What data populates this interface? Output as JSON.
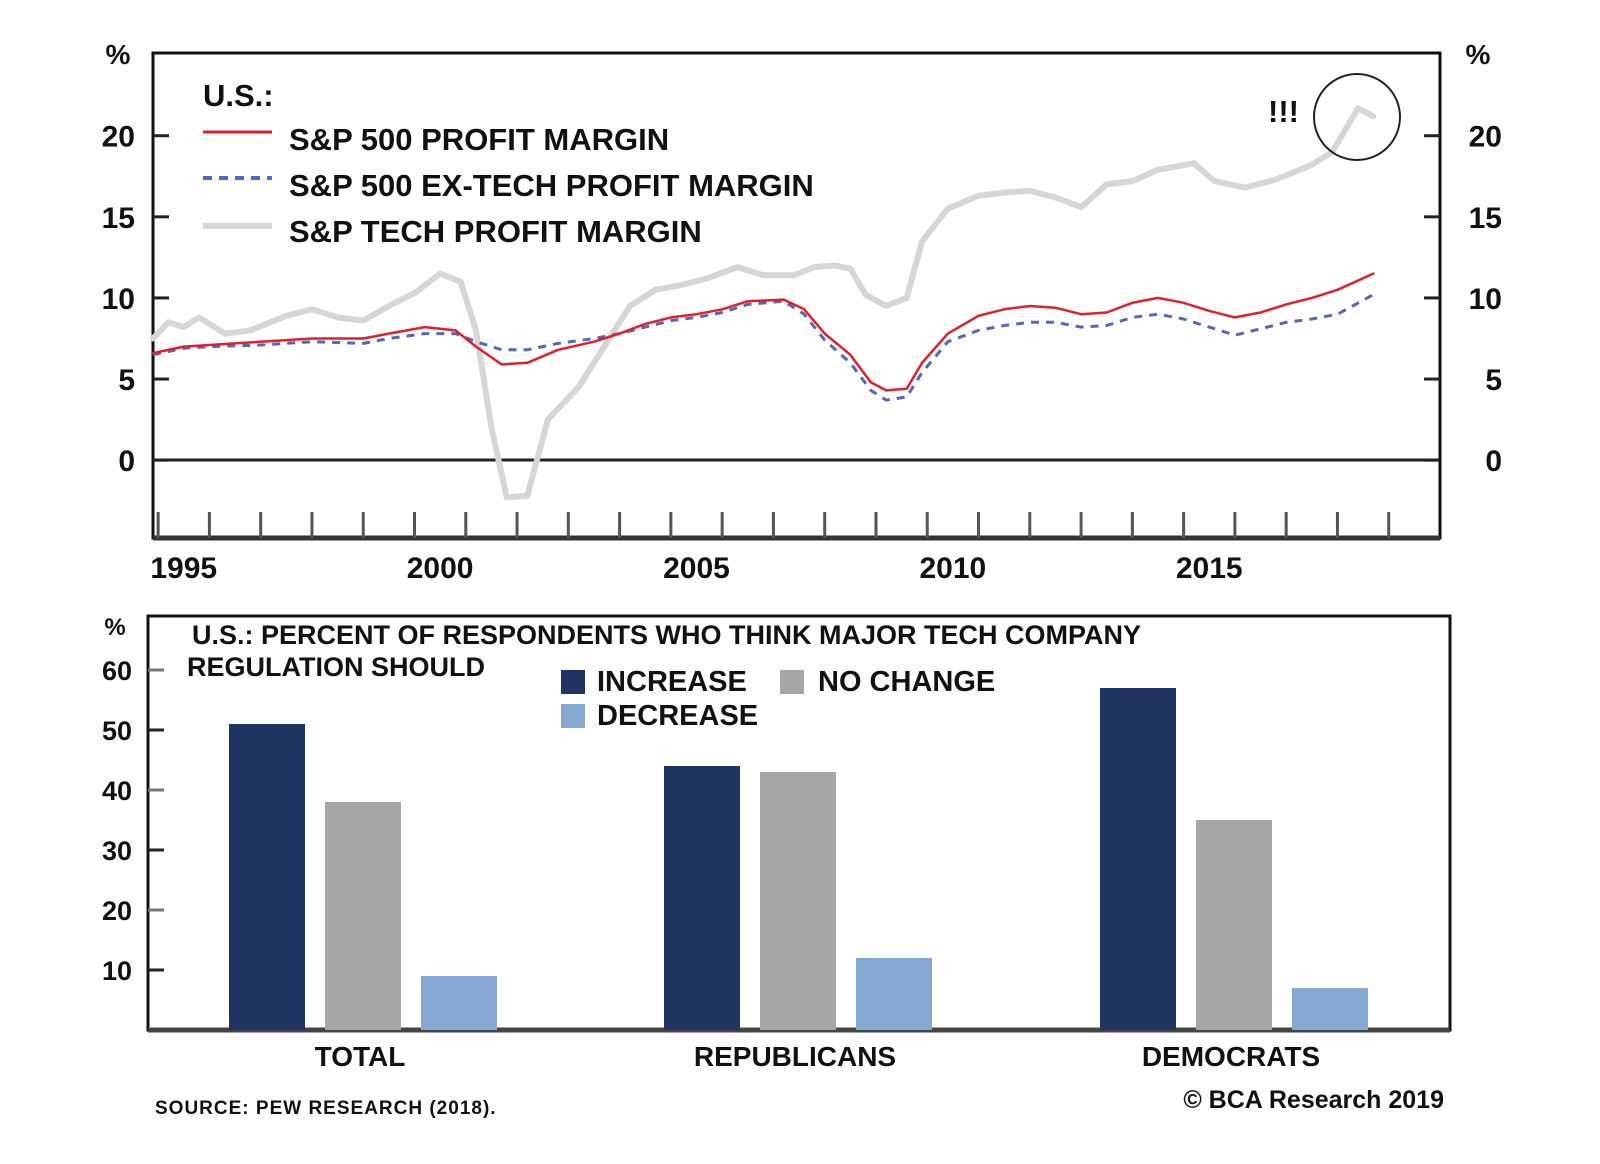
{
  "chart_data": [
    {
      "type": "line",
      "title": "U.S.:",
      "xlabel": "",
      "ylabel": "%",
      "y2label": "%",
      "xlim": [
        1994.9,
        2020.0
      ],
      "ylim": [
        -4.8,
        25.1
      ],
      "x_ticks": [
        "1995",
        "2000",
        "2005",
        "2010",
        "2015"
      ],
      "x_tick_years": [
        1995,
        2000,
        2005,
        2010,
        2015
      ],
      "y_ticks": [
        0,
        5,
        10,
        15,
        20
      ],
      "y_tick_labels": [
        "0",
        "5",
        "10",
        "15",
        "20"
      ],
      "annotation": "!!!",
      "grid": false,
      "legend_position": "top-left",
      "series": [
        {
          "name": "S&P 500 PROFIT MARGIN",
          "color": "#e0202a",
          "style": "solid",
          "x": [
            1994.9,
            1995.5,
            1996,
            1997,
            1998,
            1999,
            1999.5,
            2000.2,
            2000.8,
            2001.2,
            2001.7,
            2002.2,
            2002.8,
            2003.5,
            2004,
            2004.5,
            2005,
            2005.5,
            2006,
            2006.5,
            2007.2,
            2007.6,
            2008,
            2008.5,
            2008.9,
            2009.2,
            2009.6,
            2009.9,
            2010.4,
            2011,
            2011.5,
            2012,
            2012.5,
            2013,
            2013.5,
            2014,
            2014.5,
            2015,
            2015.5,
            2016,
            2016.5,
            2017,
            2017.5,
            2018,
            2018.7
          ],
          "values": [
            6.6,
            7.0,
            7.1,
            7.3,
            7.5,
            7.5,
            7.8,
            8.2,
            8.0,
            7.0,
            5.9,
            6.0,
            6.8,
            7.3,
            7.8,
            8.4,
            8.8,
            9.0,
            9.3,
            9.8,
            9.9,
            9.3,
            7.8,
            6.5,
            4.8,
            4.3,
            4.4,
            6.0,
            7.8,
            8.9,
            9.3,
            9.5,
            9.4,
            9.0,
            9.1,
            9.7,
            10.0,
            9.7,
            9.2,
            8.8,
            9.1,
            9.6,
            10.0,
            10.5,
            11.5
          ]
        },
        {
          "name": "S&P 500 EX-TECH PROFIT MARGIN",
          "color": "#5566bb",
          "style": "dashed",
          "x": [
            1994.9,
            1995.5,
            1996,
            1997,
            1998,
            1999,
            1999.5,
            2000.2,
            2000.8,
            2001.2,
            2001.7,
            2002.2,
            2002.8,
            2003.5,
            2004,
            2004.5,
            2005,
            2005.5,
            2006,
            2006.5,
            2007.2,
            2007.6,
            2008,
            2008.5,
            2008.9,
            2009.2,
            2009.6,
            2009.9,
            2010.4,
            2011,
            2011.5,
            2012,
            2012.5,
            2013,
            2013.5,
            2014,
            2014.5,
            2015,
            2015.5,
            2016,
            2016.5,
            2017,
            2017.5,
            2018,
            2018.7
          ],
          "values": [
            6.5,
            6.9,
            7.0,
            7.1,
            7.3,
            7.2,
            7.5,
            7.8,
            7.8,
            7.3,
            6.8,
            6.8,
            7.2,
            7.5,
            7.8,
            8.2,
            8.6,
            8.8,
            9.1,
            9.6,
            9.8,
            9.0,
            7.4,
            6.0,
            4.3,
            3.7,
            3.9,
            5.4,
            7.3,
            8.0,
            8.3,
            8.5,
            8.5,
            8.2,
            8.3,
            8.8,
            9.0,
            8.7,
            8.2,
            7.7,
            8.1,
            8.5,
            8.7,
            9.0,
            10.2
          ]
        },
        {
          "name": "S&P TECH PROFIT MARGIN",
          "color": "#d6d6d6",
          "style": "solid-thick",
          "x": [
            1994.9,
            1995.2,
            1995.5,
            1995.8,
            1996.3,
            1996.8,
            1997.5,
            1998,
            1998.5,
            1999,
            1999.5,
            2000,
            2000.5,
            2000.9,
            2001.2,
            2001.5,
            2001.8,
            2002.2,
            2002.6,
            2003.2,
            2003.7,
            2004.2,
            2004.7,
            2005.2,
            2005.7,
            2006.3,
            2006.8,
            2007.4,
            2007.8,
            2008.2,
            2008.5,
            2008.8,
            2009.2,
            2009.6,
            2009.9,
            2010.4,
            2011,
            2011.5,
            2012,
            2012.5,
            2013,
            2013.5,
            2014,
            2014.5,
            2015.2,
            2015.6,
            2016.2,
            2016.8,
            2017.5,
            2017.9,
            2018.4,
            2018.7
          ],
          "values": [
            7.5,
            8.5,
            8.2,
            8.8,
            7.8,
            8.0,
            8.9,
            9.3,
            8.8,
            8.6,
            9.5,
            10.3,
            11.5,
            11.0,
            8.0,
            2.0,
            -2.3,
            -2.2,
            2.5,
            4.5,
            7.0,
            9.5,
            10.5,
            10.8,
            11.2,
            11.9,
            11.4,
            11.4,
            11.9,
            12.0,
            11.8,
            10.2,
            9.5,
            10.0,
            13.5,
            15.5,
            16.3,
            16.5,
            16.6,
            16.2,
            15.6,
            17.0,
            17.2,
            17.9,
            18.3,
            17.2,
            16.8,
            17.3,
            18.2,
            19.0,
            21.7,
            21.2
          ]
        }
      ]
    },
    {
      "type": "bar",
      "title": "U.S.: PERCENT OF RESPONDENTS WHO THINK MAJOR TECH COMPANY",
      "title_line2": "REGULATION SHOULD",
      "xlabel": "",
      "ylabel": "%",
      "ylim": [
        0,
        65
      ],
      "y_ticks": [
        10,
        20,
        30,
        40,
        50,
        60
      ],
      "y_tick_labels": [
        "10",
        "20",
        "30",
        "40",
        "50",
        "60"
      ],
      "grid": false,
      "legend_position": "top-center",
      "categories": [
        "TOTAL",
        "REPUBLICANS",
        "DEMOCRATS"
      ],
      "series": [
        {
          "name": "INCREASE",
          "color": "#1f3461",
          "values": [
            51,
            44,
            57
          ]
        },
        {
          "name": "NO CHANGE",
          "color": "#a6a6a6",
          "values": [
            38,
            43,
            35
          ]
        },
        {
          "name": "DECREASE",
          "color": "#86a8d2",
          "values": [
            9,
            12,
            7
          ]
        }
      ]
    }
  ],
  "footer": {
    "source": "SOURCE: PEW RESEARCH (2018).",
    "copyright": "© BCA Research 2019"
  }
}
